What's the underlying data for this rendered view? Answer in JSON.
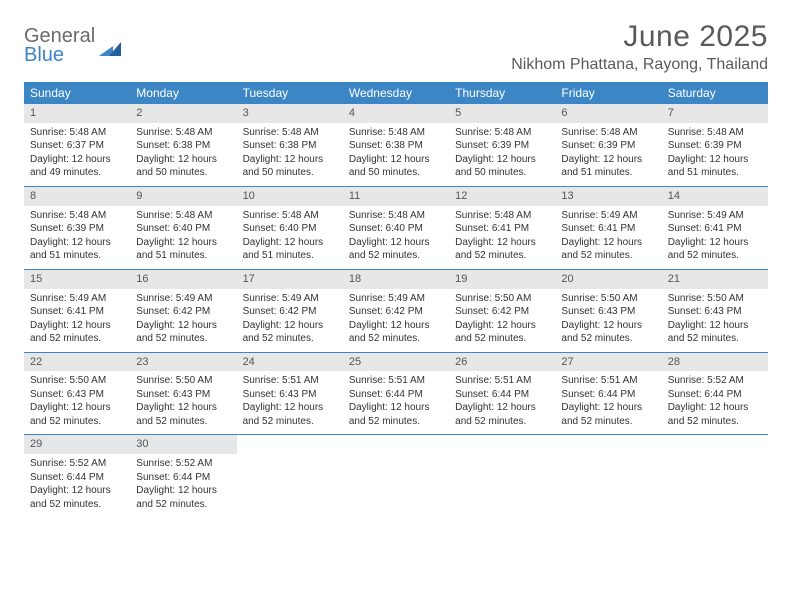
{
  "brand": {
    "line1": "General",
    "line2": "Blue"
  },
  "title": "June 2025",
  "location": "Nikhom Phattana, Rayong, Thailand",
  "colors": {
    "header_bg": "#3d86c6",
    "header_text": "#ffffff",
    "daynum_bg": "#e7e7e7",
    "divider": "#3d86c6",
    "body_text": "#333333",
    "title_text": "#5a5a5a"
  },
  "calendar": {
    "type": "table",
    "day_names": [
      "Sunday",
      "Monday",
      "Tuesday",
      "Wednesday",
      "Thursday",
      "Friday",
      "Saturday"
    ],
    "cell_fontsize": 10,
    "header_fontsize": 12,
    "days": [
      {
        "n": 1,
        "sunrise": "5:48 AM",
        "sunset": "6:37 PM",
        "daylight": "12 hours and 49 minutes."
      },
      {
        "n": 2,
        "sunrise": "5:48 AM",
        "sunset": "6:38 PM",
        "daylight": "12 hours and 50 minutes."
      },
      {
        "n": 3,
        "sunrise": "5:48 AM",
        "sunset": "6:38 PM",
        "daylight": "12 hours and 50 minutes."
      },
      {
        "n": 4,
        "sunrise": "5:48 AM",
        "sunset": "6:38 PM",
        "daylight": "12 hours and 50 minutes."
      },
      {
        "n": 5,
        "sunrise": "5:48 AM",
        "sunset": "6:39 PM",
        "daylight": "12 hours and 50 minutes."
      },
      {
        "n": 6,
        "sunrise": "5:48 AM",
        "sunset": "6:39 PM",
        "daylight": "12 hours and 51 minutes."
      },
      {
        "n": 7,
        "sunrise": "5:48 AM",
        "sunset": "6:39 PM",
        "daylight": "12 hours and 51 minutes."
      },
      {
        "n": 8,
        "sunrise": "5:48 AM",
        "sunset": "6:39 PM",
        "daylight": "12 hours and 51 minutes."
      },
      {
        "n": 9,
        "sunrise": "5:48 AM",
        "sunset": "6:40 PM",
        "daylight": "12 hours and 51 minutes."
      },
      {
        "n": 10,
        "sunrise": "5:48 AM",
        "sunset": "6:40 PM",
        "daylight": "12 hours and 51 minutes."
      },
      {
        "n": 11,
        "sunrise": "5:48 AM",
        "sunset": "6:40 PM",
        "daylight": "12 hours and 52 minutes."
      },
      {
        "n": 12,
        "sunrise": "5:48 AM",
        "sunset": "6:41 PM",
        "daylight": "12 hours and 52 minutes."
      },
      {
        "n": 13,
        "sunrise": "5:49 AM",
        "sunset": "6:41 PM",
        "daylight": "12 hours and 52 minutes."
      },
      {
        "n": 14,
        "sunrise": "5:49 AM",
        "sunset": "6:41 PM",
        "daylight": "12 hours and 52 minutes."
      },
      {
        "n": 15,
        "sunrise": "5:49 AM",
        "sunset": "6:41 PM",
        "daylight": "12 hours and 52 minutes."
      },
      {
        "n": 16,
        "sunrise": "5:49 AM",
        "sunset": "6:42 PM",
        "daylight": "12 hours and 52 minutes."
      },
      {
        "n": 17,
        "sunrise": "5:49 AM",
        "sunset": "6:42 PM",
        "daylight": "12 hours and 52 minutes."
      },
      {
        "n": 18,
        "sunrise": "5:49 AM",
        "sunset": "6:42 PM",
        "daylight": "12 hours and 52 minutes."
      },
      {
        "n": 19,
        "sunrise": "5:50 AM",
        "sunset": "6:42 PM",
        "daylight": "12 hours and 52 minutes."
      },
      {
        "n": 20,
        "sunrise": "5:50 AM",
        "sunset": "6:43 PM",
        "daylight": "12 hours and 52 minutes."
      },
      {
        "n": 21,
        "sunrise": "5:50 AM",
        "sunset": "6:43 PM",
        "daylight": "12 hours and 52 minutes."
      },
      {
        "n": 22,
        "sunrise": "5:50 AM",
        "sunset": "6:43 PM",
        "daylight": "12 hours and 52 minutes."
      },
      {
        "n": 23,
        "sunrise": "5:50 AM",
        "sunset": "6:43 PM",
        "daylight": "12 hours and 52 minutes."
      },
      {
        "n": 24,
        "sunrise": "5:51 AM",
        "sunset": "6:43 PM",
        "daylight": "12 hours and 52 minutes."
      },
      {
        "n": 25,
        "sunrise": "5:51 AM",
        "sunset": "6:44 PM",
        "daylight": "12 hours and 52 minutes."
      },
      {
        "n": 26,
        "sunrise": "5:51 AM",
        "sunset": "6:44 PM",
        "daylight": "12 hours and 52 minutes."
      },
      {
        "n": 27,
        "sunrise": "5:51 AM",
        "sunset": "6:44 PM",
        "daylight": "12 hours and 52 minutes."
      },
      {
        "n": 28,
        "sunrise": "5:52 AM",
        "sunset": "6:44 PM",
        "daylight": "12 hours and 52 minutes."
      },
      {
        "n": 29,
        "sunrise": "5:52 AM",
        "sunset": "6:44 PM",
        "daylight": "12 hours and 52 minutes."
      },
      {
        "n": 30,
        "sunrise": "5:52 AM",
        "sunset": "6:44 PM",
        "daylight": "12 hours and 52 minutes."
      }
    ],
    "labels": {
      "sunrise": "Sunrise:",
      "sunset": "Sunset:",
      "daylight": "Daylight:"
    }
  }
}
